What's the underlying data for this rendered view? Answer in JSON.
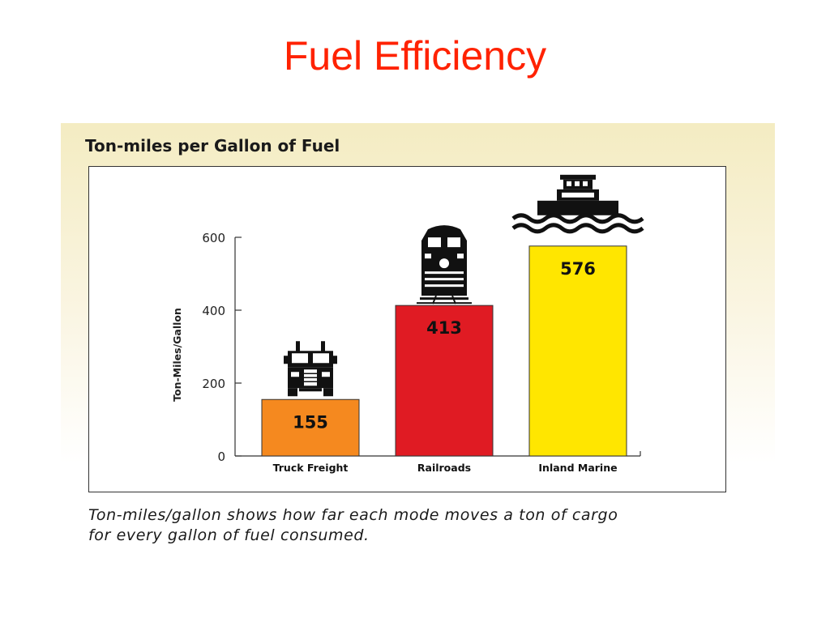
{
  "slide": {
    "title": "Fuel Efficiency",
    "caption_line1": "Ton-miles/gallon shows how far each mode moves a ton of cargo",
    "caption_line2": "for every gallon of fuel consumed."
  },
  "colors": {
    "title": "#ff2200",
    "truck": "#f5891f",
    "rail": "#e01b23",
    "marine": "#ffe600"
  },
  "chart_data": {
    "type": "bar",
    "title": "Ton-miles per Gallon of Fuel",
    "ylabel": "Ton-Miles/Gallon",
    "xlabel": "",
    "categories": [
      "Truck Freight",
      "Railroads",
      "Inland Marine"
    ],
    "values": [
      155,
      413,
      576
    ],
    "data_labels": [
      "155",
      "413",
      "576"
    ],
    "icons": [
      "truck-icon",
      "locomotive-icon",
      "tugboat-icon"
    ],
    "bar_colors": [
      "#f5891f",
      "#e01b23",
      "#ffe600"
    ],
    "ylim": [
      0,
      600
    ],
    "yticks": [
      0,
      200,
      400,
      600
    ],
    "grid": false,
    "legend": "none"
  }
}
